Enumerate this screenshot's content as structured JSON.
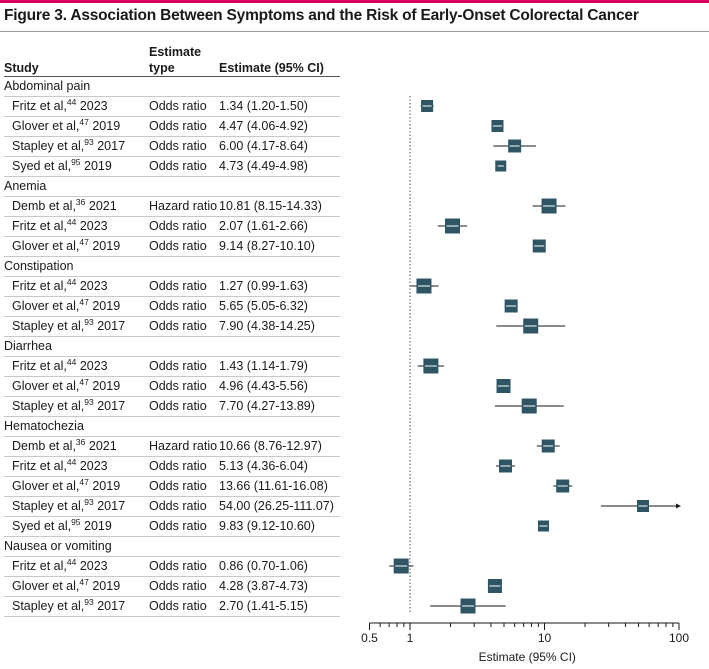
{
  "figure": {
    "title": "Figure 3. Association Between Symptoms and the Risk of Early-Onset Colorectal Cancer",
    "columns": {
      "study": "Study",
      "estimate_type_line1": "Estimate",
      "estimate_type_line2": "type",
      "estimate": "Estimate (95% CI)"
    },
    "accent_color": "#d6005c",
    "marker_color": "#2e5564"
  },
  "chart_data": {
    "type": "forest",
    "x_scale": "log",
    "xlim": [
      0.5,
      100
    ],
    "xlabel": "Estimate (95% CI)",
    "xticks": [
      "0.5",
      "1",
      "10",
      "100"
    ],
    "reference_line": 1,
    "groups": [
      {
        "label": "Abdominal pain",
        "rows": [
          {
            "author": "Fritz et al,",
            "ref": "44",
            "year": "2023",
            "type": "Odds ratio",
            "ci_text": "1.34 (1.20-1.50)",
            "est": 1.34,
            "lo": 1.2,
            "hi": 1.5,
            "size": 12
          },
          {
            "author": "Glover et al,",
            "ref": "47",
            "year": "2019",
            "type": "Odds ratio",
            "ci_text": "4.47 (4.06-4.92)",
            "est": 4.47,
            "lo": 4.06,
            "hi": 4.92,
            "size": 12
          },
          {
            "author": "Stapley et al,",
            "ref": "93",
            "year": "2017",
            "type": "Odds ratio",
            "ci_text": "6.00 (4.17-8.64)",
            "est": 6.0,
            "lo": 4.17,
            "hi": 8.64,
            "size": 13
          },
          {
            "author": "Syed et al,",
            "ref": "95",
            "year": "2019",
            "type": "Odds ratio",
            "ci_text": "4.73 (4.49-4.98)",
            "est": 4.73,
            "lo": 4.49,
            "hi": 4.98,
            "size": 11
          }
        ]
      },
      {
        "label": "Anemia",
        "rows": [
          {
            "author": "Demb et al,",
            "ref": "36",
            "year": "2021",
            "type": "Hazard ratio",
            "ci_text": "10.81 (8.15-14.33)",
            "est": 10.81,
            "lo": 8.15,
            "hi": 14.33,
            "size": 15
          },
          {
            "author": "Fritz et al,",
            "ref": "44",
            "year": "2023",
            "type": "Odds ratio",
            "ci_text": "2.07 (1.61-2.66)",
            "est": 2.07,
            "lo": 1.61,
            "hi": 2.66,
            "size": 15
          },
          {
            "author": "Glover et al,",
            "ref": "47",
            "year": "2019",
            "type": "Odds ratio",
            "ci_text": "9.14 (8.27-10.10)",
            "est": 9.14,
            "lo": 8.27,
            "hi": 10.1,
            "size": 13
          }
        ]
      },
      {
        "label": "Constipation",
        "rows": [
          {
            "author": "Fritz et al,",
            "ref": "44",
            "year": "2023",
            "type": "Odds ratio",
            "ci_text": "1.27 (0.99-1.63)",
            "est": 1.27,
            "lo": 0.99,
            "hi": 1.63,
            "size": 15
          },
          {
            "author": "Glover et al,",
            "ref": "47",
            "year": "2019",
            "type": "Odds ratio",
            "ci_text": "5.65 (5.05-6.32)",
            "est": 5.65,
            "lo": 5.05,
            "hi": 6.32,
            "size": 13
          },
          {
            "author": "Stapley et al,",
            "ref": "93",
            "year": "2017",
            "type": "Odds ratio",
            "ci_text": "7.90 (4.38-14.25)",
            "est": 7.9,
            "lo": 4.38,
            "hi": 14.25,
            "size": 15
          }
        ]
      },
      {
        "label": "Diarrhea",
        "rows": [
          {
            "author": "Fritz et al,",
            "ref": "44",
            "year": "2023",
            "type": "Odds ratio",
            "ci_text": "1.43 (1.14-1.79)",
            "est": 1.43,
            "lo": 1.14,
            "hi": 1.79,
            "size": 15
          },
          {
            "author": "Glover et al,",
            "ref": "47",
            "year": "2019",
            "type": "Odds ratio",
            "ci_text": "4.96 (4.43-5.56)",
            "est": 4.96,
            "lo": 4.43,
            "hi": 5.56,
            "size": 14
          },
          {
            "author": "Stapley et al,",
            "ref": "93",
            "year": "2017",
            "type": "Odds ratio",
            "ci_text": "7.70 (4.27-13.89)",
            "est": 7.7,
            "lo": 4.27,
            "hi": 13.89,
            "size": 15
          }
        ]
      },
      {
        "label": "Hematochezia",
        "rows": [
          {
            "author": "Demb et al,",
            "ref": "36",
            "year": "2021",
            "type": "Hazard ratio",
            "ci_text": "10.66 (8.76-12.97)",
            "est": 10.66,
            "lo": 8.76,
            "hi": 12.97,
            "size": 13
          },
          {
            "author": "Fritz et al,",
            "ref": "44",
            "year": "2023",
            "type": "Odds ratio",
            "ci_text": "5.13 (4.36-6.04)",
            "est": 5.13,
            "lo": 4.36,
            "hi": 6.04,
            "size": 13
          },
          {
            "author": "Glover et al,",
            "ref": "47",
            "year": "2019",
            "type": "Odds ratio",
            "ci_text": "13.66 (11.61-16.08)",
            "est": 13.66,
            "lo": 11.61,
            "hi": 16.08,
            "size": 13
          },
          {
            "author": "Stapley et al,",
            "ref": "93",
            "year": "2017",
            "type": "Odds ratio",
            "ci_text": "54.00 (26.25-111.07)",
            "est": 54.0,
            "lo": 26.25,
            "hi": 111.07,
            "size": 12,
            "arrow": true
          },
          {
            "author": "Syed et al,",
            "ref": "95",
            "year": "2019",
            "type": "Odds ratio",
            "ci_text": "9.83 (9.12-10.60)",
            "est": 9.83,
            "lo": 9.12,
            "hi": 10.6,
            "size": 11
          }
        ]
      },
      {
        "label": "Nausea or vomiting",
        "rows": [
          {
            "author": "Fritz et al,",
            "ref": "44",
            "year": "2023",
            "type": "Odds ratio",
            "ci_text": "0.86 (0.70-1.06)",
            "est": 0.86,
            "lo": 0.7,
            "hi": 1.06,
            "size": 15
          },
          {
            "author": "Glover et al,",
            "ref": "47",
            "year": "2019",
            "type": "Odds ratio",
            "ci_text": "4.28 (3.87-4.73)",
            "est": 4.28,
            "lo": 3.87,
            "hi": 4.73,
            "size": 14
          },
          {
            "author": "Stapley et al,",
            "ref": "93",
            "year": "2017",
            "type": "Odds ratio",
            "ci_text": "2.70 (1.41-5.15)",
            "est": 2.7,
            "lo": 1.41,
            "hi": 5.15,
            "size": 15
          }
        ]
      }
    ]
  }
}
